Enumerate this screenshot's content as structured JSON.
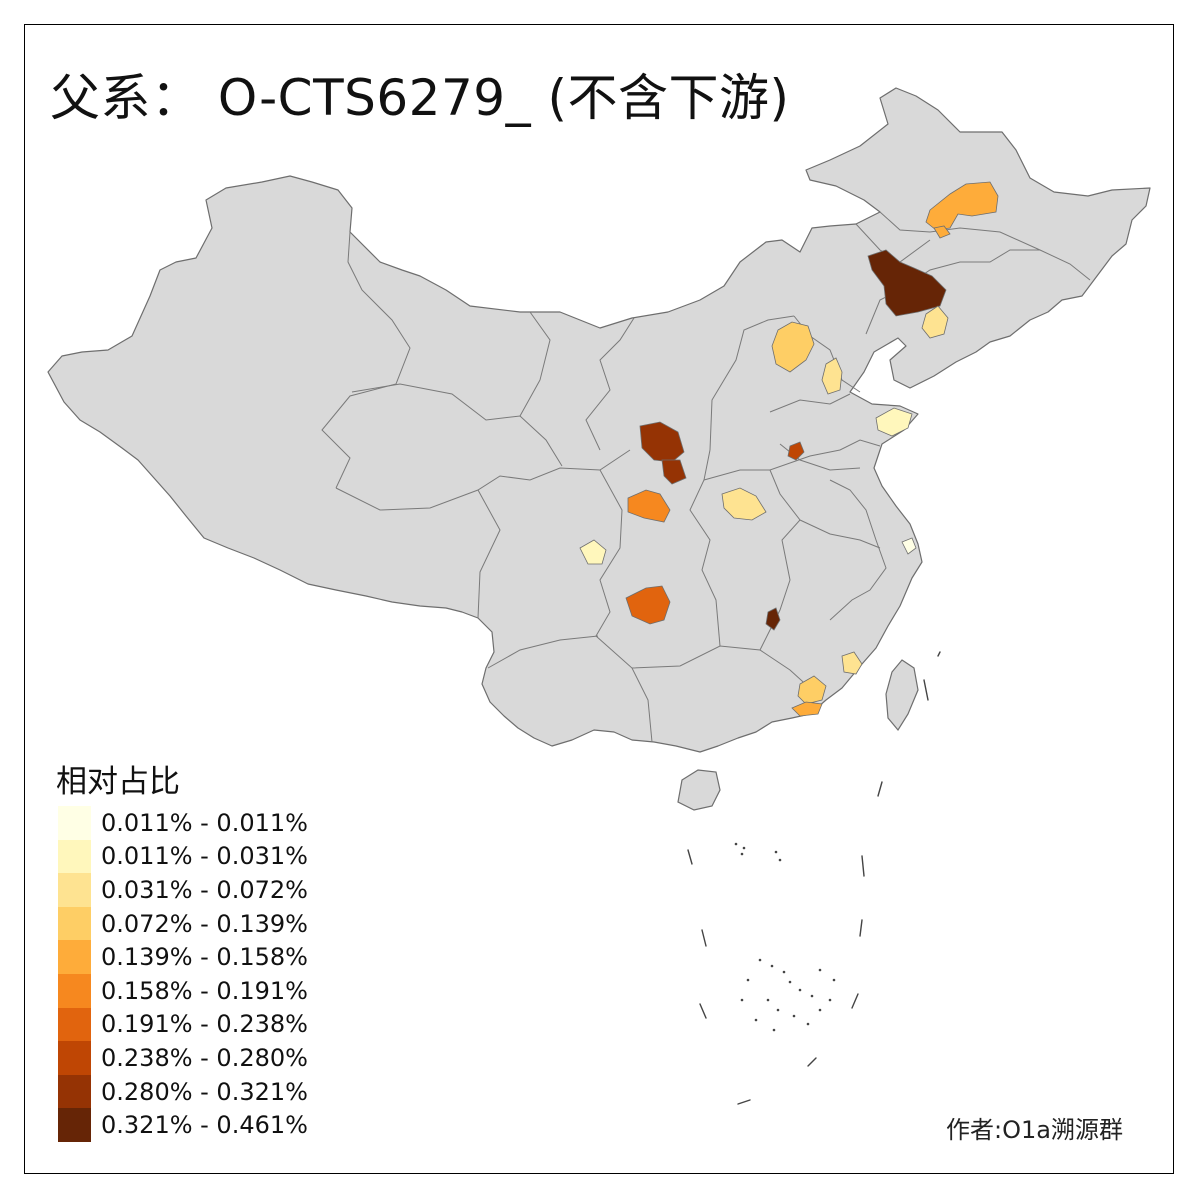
{
  "title": "父系： O-CTS6279_ (不含下游)",
  "legend": {
    "title": "相对占比",
    "items": [
      {
        "label": "0.011% - 0.011%",
        "color": "#FFFFE5"
      },
      {
        "label": "0.011% - 0.031%",
        "color": "#FFF7BC"
      },
      {
        "label": "0.031% - 0.072%",
        "color": "#FEE391"
      },
      {
        "label": "0.072% - 0.139%",
        "color": "#FECE65"
      },
      {
        "label": "0.139% - 0.158%",
        "color": "#FEAC3A"
      },
      {
        "label": "0.158% - 0.191%",
        "color": "#F6881F"
      },
      {
        "label": "0.191% - 0.238%",
        "color": "#E1640E"
      },
      {
        "label": "0.238% - 0.280%",
        "color": "#BF4604"
      },
      {
        "label": "0.280% - 0.321%",
        "color": "#953304"
      },
      {
        "label": "0.321% - 0.461%",
        "color": "#662506"
      }
    ]
  },
  "author": "作者:O1a溯源群",
  "colors": {
    "land": "#D9D9D9",
    "border": "#6E6E6E",
    "frame": "#000000"
  }
}
